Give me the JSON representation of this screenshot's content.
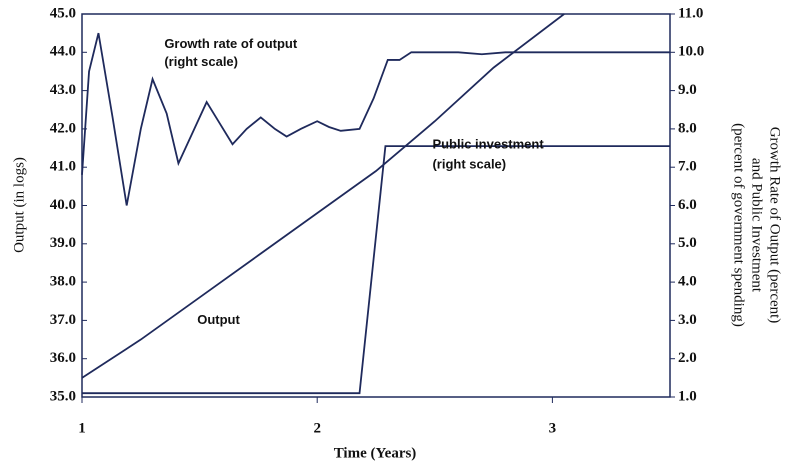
{
  "chart_data": {
    "type": "line",
    "xlabel": "Time (Years)",
    "ylabel": "Output (in logs)",
    "y2label": [
      "Growth Rate of Output (percent)",
      "and Public Investment",
      "(percent of government spending)"
    ],
    "xlim": [
      1,
      3.5
    ],
    "xticks": [
      1,
      2,
      3
    ],
    "ylim": [
      35,
      45
    ],
    "yticks": [
      {
        "value": 35,
        "label": "35.0"
      },
      {
        "value": 36,
        "label": "36.0"
      },
      {
        "value": 37,
        "label": "37.0"
      },
      {
        "value": 38,
        "label": "38.0"
      },
      {
        "value": 39,
        "label": "39.0"
      },
      {
        "value": 40,
        "label": "40.0"
      },
      {
        "value": 41,
        "label": "41.0"
      },
      {
        "value": 42,
        "label": "42.0"
      },
      {
        "value": 43,
        "label": "43.0"
      },
      {
        "value": 44,
        "label": "44.0"
      },
      {
        "value": 45,
        "label": "45.0"
      }
    ],
    "y2lim": [
      1,
      11
    ],
    "y2ticks": [
      {
        "value": 1,
        "label": "1.0"
      },
      {
        "value": 2,
        "label": "2.0"
      },
      {
        "value": 3,
        "label": "3.0"
      },
      {
        "value": 4,
        "label": "4.0"
      },
      {
        "value": 5,
        "label": "5.0"
      },
      {
        "value": 6,
        "label": "6.0"
      },
      {
        "value": 7,
        "label": "7.0"
      },
      {
        "value": 8,
        "label": "8.0"
      },
      {
        "value": 9,
        "label": "9.0"
      },
      {
        "value": 10,
        "label": "10.0"
      },
      {
        "value": 11,
        "label": "11.0"
      }
    ],
    "annotations": [
      {
        "text": "Growth rate of output",
        "x": 1.35,
        "y": 44.2
      },
      {
        "text": "(right scale)",
        "x": 1.35,
        "y": 43.73
      },
      {
        "text": "Public investment",
        "x": 2.49,
        "y": 41.58
      },
      {
        "text": "(right scale)",
        "x": 2.49,
        "y": 41.06
      },
      {
        "text": "Output",
        "x": 1.49,
        "y": 37.0
      }
    ],
    "series": [
      {
        "name": "Output",
        "color": "#1f2a5c",
        "x": [
          1,
          1.25,
          1.5,
          1.75,
          2,
          2.25,
          2.5,
          2.75,
          3.05
        ],
        "values": [
          35.5,
          36.5,
          37.6,
          38.7,
          39.8,
          40.9,
          42.2,
          43.6,
          45
        ]
      },
      {
        "name": "Growth rate of output",
        "color": "#1f2a5c",
        "axis": "y2",
        "x": [
          1,
          1.03,
          1.07,
          1.13,
          1.19,
          1.25,
          1.3,
          1.36,
          1.41,
          1.47,
          1.53,
          1.59,
          1.64,
          1.7,
          1.76,
          1.82,
          1.87,
          1.93,
          2.0,
          2.05,
          2.1,
          2.18,
          2.24,
          2.3,
          2.35,
          2.4,
          2.5,
          2.6,
          2.7,
          2.8,
          3.0,
          3.2,
          3.5
        ],
        "values": [
          6.8,
          9.5,
          10.5,
          8.3,
          6.0,
          8.0,
          9.3,
          8.4,
          7.1,
          7.9,
          8.7,
          8.1,
          7.6,
          8.0,
          8.3,
          8.0,
          7.8,
          8.0,
          8.2,
          8.05,
          7.95,
          8.0,
          8.8,
          9.8,
          9.8,
          10.0,
          10.0,
          10.0,
          9.95,
          10.0,
          10.0,
          10.0,
          10.0
        ]
      },
      {
        "name": "Public investment",
        "color": "#1f2a5c",
        "axis": "y2",
        "x": [
          1,
          2.18,
          2.29,
          3.5
        ],
        "values": [
          1.1,
          1.1,
          7.55,
          7.55
        ]
      }
    ]
  }
}
